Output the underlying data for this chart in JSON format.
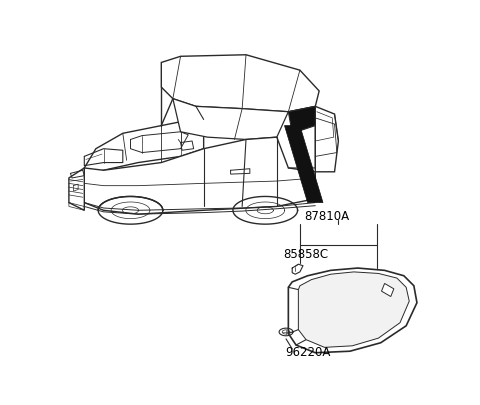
{
  "background_color": "#ffffff",
  "line_color": "#2a2a2a",
  "fill_black": "#111111",
  "label_87810A": [
    0.595,
    0.595
  ],
  "label_85858C": [
    0.435,
    0.495
  ],
  "label_96220A": [
    0.385,
    0.185
  ],
  "label_fontsize": 8.5,
  "car_scale": 1.0
}
